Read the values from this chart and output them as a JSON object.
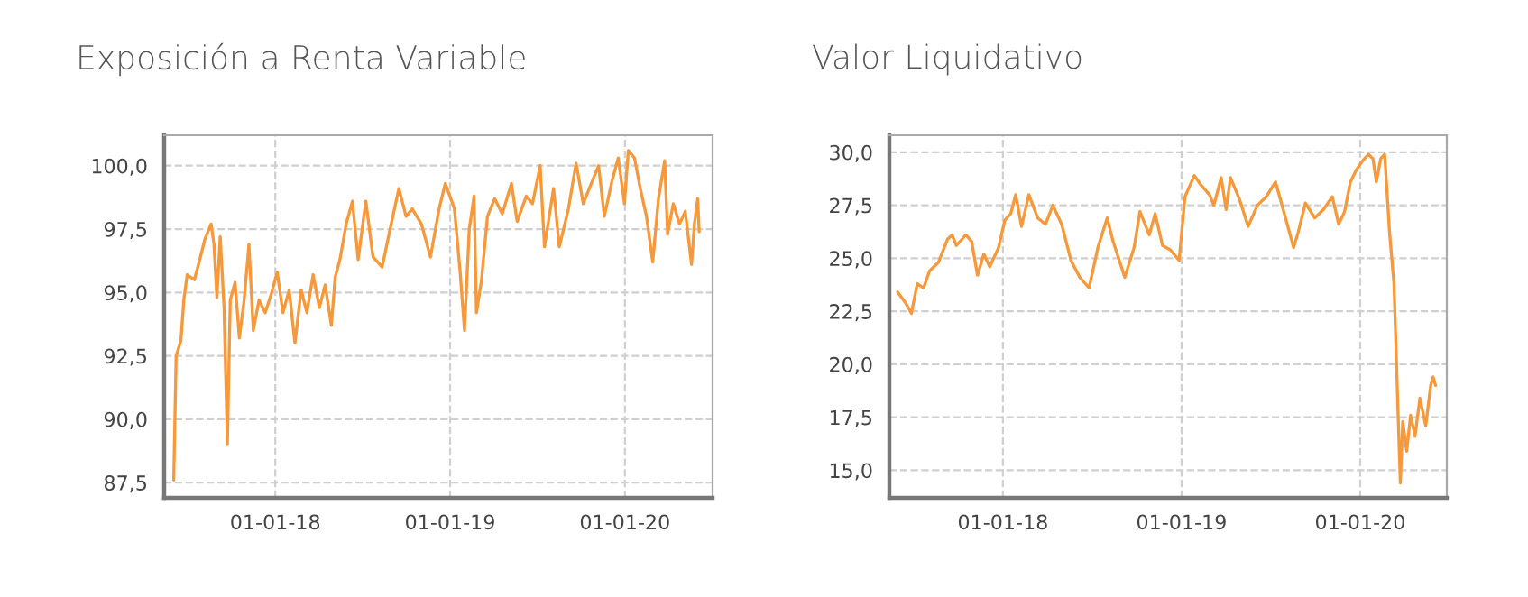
{
  "chart_data": [
    {
      "type": "line",
      "title": "Exposición a Renta Variable",
      "x": [
        "2017-06-03",
        "2017-06-08",
        "2017-06-18",
        "2017-06-24",
        "2017-07-01",
        "2017-07-16",
        "2017-07-26",
        "2017-08-07",
        "2017-08-20",
        "2017-08-26",
        "2017-09-01",
        "2017-09-08",
        "2017-09-16",
        "2017-09-23",
        "2017-09-29",
        "2017-10-09",
        "2017-10-18",
        "2017-10-28",
        "2017-11-07",
        "2017-11-16",
        "2017-11-28",
        "2017-12-11",
        "2017-12-23",
        "2018-01-05",
        "2018-01-17",
        "2018-01-30",
        "2018-02-11",
        "2018-02-24",
        "2018-03-08",
        "2018-03-21",
        "2018-04-03",
        "2018-04-15",
        "2018-04-28",
        "2018-05-06",
        "2018-05-16",
        "2018-05-29",
        "2018-06-11",
        "2018-06-23",
        "2018-07-09",
        "2018-07-24",
        "2018-08-12",
        "2018-08-31",
        "2018-09-16",
        "2018-10-01",
        "2018-10-14",
        "2018-11-02",
        "2018-11-21",
        "2018-12-09",
        "2018-12-22",
        "2019-01-10",
        "2019-01-22",
        "2019-01-31",
        "2019-02-10",
        "2019-02-20",
        "2019-02-25",
        "2019-03-07",
        "2019-03-20",
        "2019-04-04",
        "2019-04-20",
        "2019-05-09",
        "2019-05-21",
        "2019-06-09",
        "2019-06-22",
        "2019-07-08",
        "2019-07-17",
        "2019-08-05",
        "2019-08-17",
        "2019-09-05",
        "2019-09-21",
        "2019-10-06",
        "2019-10-25",
        "2019-11-07",
        "2019-11-19",
        "2019-12-05",
        "2019-12-18",
        "2019-12-31",
        "2020-01-08",
        "2020-01-21",
        "2020-02-02",
        "2020-02-15",
        "2020-02-28",
        "2020-03-11",
        "2020-03-24",
        "2020-03-30",
        "2020-04-11",
        "2020-04-24",
        "2020-05-06",
        "2020-05-19",
        "2020-05-25",
        "2020-06-01",
        "2020-06-04"
      ],
      "series": [
        {
          "color": "#f7993a",
          "values": [
            87.6,
            92.5,
            93.1,
            94.7,
            95.7,
            95.5,
            96.2,
            97.1,
            97.7,
            96.9,
            94.8,
            97.2,
            94.4,
            89.0,
            94.7,
            95.4,
            93.2,
            94.7,
            96.9,
            93.5,
            94.7,
            94.2,
            94.9,
            95.8,
            94.2,
            95.1,
            93.0,
            95.1,
            94.2,
            95.7,
            94.4,
            95.3,
            93.7,
            95.6,
            96.3,
            97.7,
            98.6,
            96.3,
            98.6,
            96.4,
            96.0,
            97.7,
            99.1,
            98.0,
            98.3,
            97.7,
            96.4,
            98.3,
            99.3,
            98.3,
            95.8,
            93.5,
            97.5,
            98.8,
            94.2,
            95.4,
            98.0,
            98.7,
            98.1,
            99.3,
            97.8,
            98.8,
            98.5,
            100.0,
            96.8,
            99.1,
            96.8,
            98.3,
            100.1,
            98.5,
            99.4,
            100.0,
            98.0,
            99.4,
            100.3,
            98.5,
            100.6,
            100.3,
            99.1,
            98.0,
            96.2,
            98.7,
            100.2,
            97.3,
            98.5,
            97.7,
            98.2,
            96.1,
            97.7,
            98.7,
            97.4
          ]
        }
      ],
      "xlim": [
        "2017-05-14",
        "2020-07-02"
      ],
      "xticks": [
        {
          "value": "2018-01-01",
          "label": "01-01-18"
        },
        {
          "value": "2019-01-01",
          "label": "01-01-19"
        },
        {
          "value": "2020-01-01",
          "label": "01-01-20"
        }
      ],
      "ylim": [
        86.9,
        101.2
      ],
      "yticks": [
        {
          "value": 87.5,
          "label": "87,5"
        },
        {
          "value": 90,
          "label": "90,0"
        },
        {
          "value": 92.5,
          "label": "92,5"
        },
        {
          "value": 95,
          "label": "95,0"
        },
        {
          "value": 97.5,
          "label": "97,5"
        },
        {
          "value": 100,
          "label": "100,0"
        }
      ],
      "grid": true
    },
    {
      "type": "line",
      "title": "Valor Liquidativo",
      "x": [
        "2017-05-31",
        "2017-06-16",
        "2017-06-28",
        "2017-07-10",
        "2017-07-23",
        "2017-08-04",
        "2017-08-22",
        "2017-09-10",
        "2017-09-19",
        "2017-09-28",
        "2017-10-17",
        "2017-10-29",
        "2017-11-10",
        "2017-11-23",
        "2017-12-05",
        "2017-12-23",
        "2018-01-05",
        "2018-01-17",
        "2018-01-27",
        "2018-02-08",
        "2018-02-23",
        "2018-03-13",
        "2018-03-29",
        "2018-04-13",
        "2018-05-01",
        "2018-05-20",
        "2018-06-07",
        "2018-06-26",
        "2018-07-14",
        "2018-08-02",
        "2018-08-14",
        "2018-09-07",
        "2018-09-26",
        "2018-10-08",
        "2018-10-27",
        "2018-11-08",
        "2018-11-23",
        "2018-12-09",
        "2018-12-27",
        "2019-01-08",
        "2019-01-27",
        "2019-02-08",
        "2019-02-27",
        "2019-03-08",
        "2019-03-23",
        "2019-04-02",
        "2019-04-11",
        "2019-04-29",
        "2019-05-17",
        "2019-06-05",
        "2019-06-23",
        "2019-07-12",
        "2019-07-30",
        "2019-08-18",
        "2019-08-27",
        "2019-09-11",
        "2019-09-30",
        "2019-10-18",
        "2019-11-05",
        "2019-11-18",
        "2019-11-30",
        "2019-12-12",
        "2019-12-25",
        "2020-01-06",
        "2020-01-18",
        "2020-01-27",
        "2020-02-03",
        "2020-02-12",
        "2020-02-20",
        "2020-03-01",
        "2020-03-10",
        "2020-03-17",
        "2020-03-23",
        "2020-03-28",
        "2020-04-05",
        "2020-04-13",
        "2020-04-22",
        "2020-05-02",
        "2020-05-14",
        "2020-05-24",
        "2020-05-29",
        "2020-06-03"
      ],
      "series": [
        {
          "color": "#f7993a",
          "values": [
            23.4,
            22.9,
            22.4,
            23.8,
            23.6,
            24.4,
            24.8,
            25.9,
            26.1,
            25.6,
            26.1,
            25.8,
            24.2,
            25.2,
            24.6,
            25.5,
            26.8,
            27.1,
            28.0,
            26.5,
            28.0,
            26.9,
            26.6,
            27.5,
            26.6,
            24.9,
            24.1,
            23.6,
            25.5,
            26.9,
            25.8,
            24.1,
            25.5,
            27.2,
            26.1,
            27.1,
            25.6,
            25.4,
            24.9,
            27.9,
            28.9,
            28.5,
            28.0,
            27.5,
            28.8,
            27.3,
            28.8,
            27.8,
            26.5,
            27.5,
            27.9,
            28.6,
            27.1,
            25.5,
            26.2,
            27.6,
            26.9,
            27.3,
            27.9,
            26.6,
            27.2,
            28.6,
            29.2,
            29.6,
            29.9,
            29.7,
            28.6,
            29.7,
            29.9,
            26.2,
            23.8,
            18.7,
            14.4,
            17.3,
            15.9,
            17.6,
            16.6,
            18.4,
            17.1,
            19.0,
            19.4,
            19.0
          ]
        }
      ],
      "xlim": [
        "2017-05-14",
        "2020-06-26"
      ],
      "xticks": [
        {
          "value": "2018-01-01",
          "label": "01-01-18"
        },
        {
          "value": "2019-01-01",
          "label": "01-01-19"
        },
        {
          "value": "2020-01-01",
          "label": "01-01-20"
        }
      ],
      "ylim": [
        13.7,
        30.8
      ],
      "yticks": [
        {
          "value": 15,
          "label": "15,0"
        },
        {
          "value": 17.5,
          "label": "17,5"
        },
        {
          "value": 20,
          "label": "20,0"
        },
        {
          "value": 22.5,
          "label": "22,5"
        },
        {
          "value": 25,
          "label": "25,0"
        },
        {
          "value": 27.5,
          "label": "27,5"
        },
        {
          "value": 30,
          "label": "30,0"
        }
      ],
      "grid": true
    }
  ]
}
